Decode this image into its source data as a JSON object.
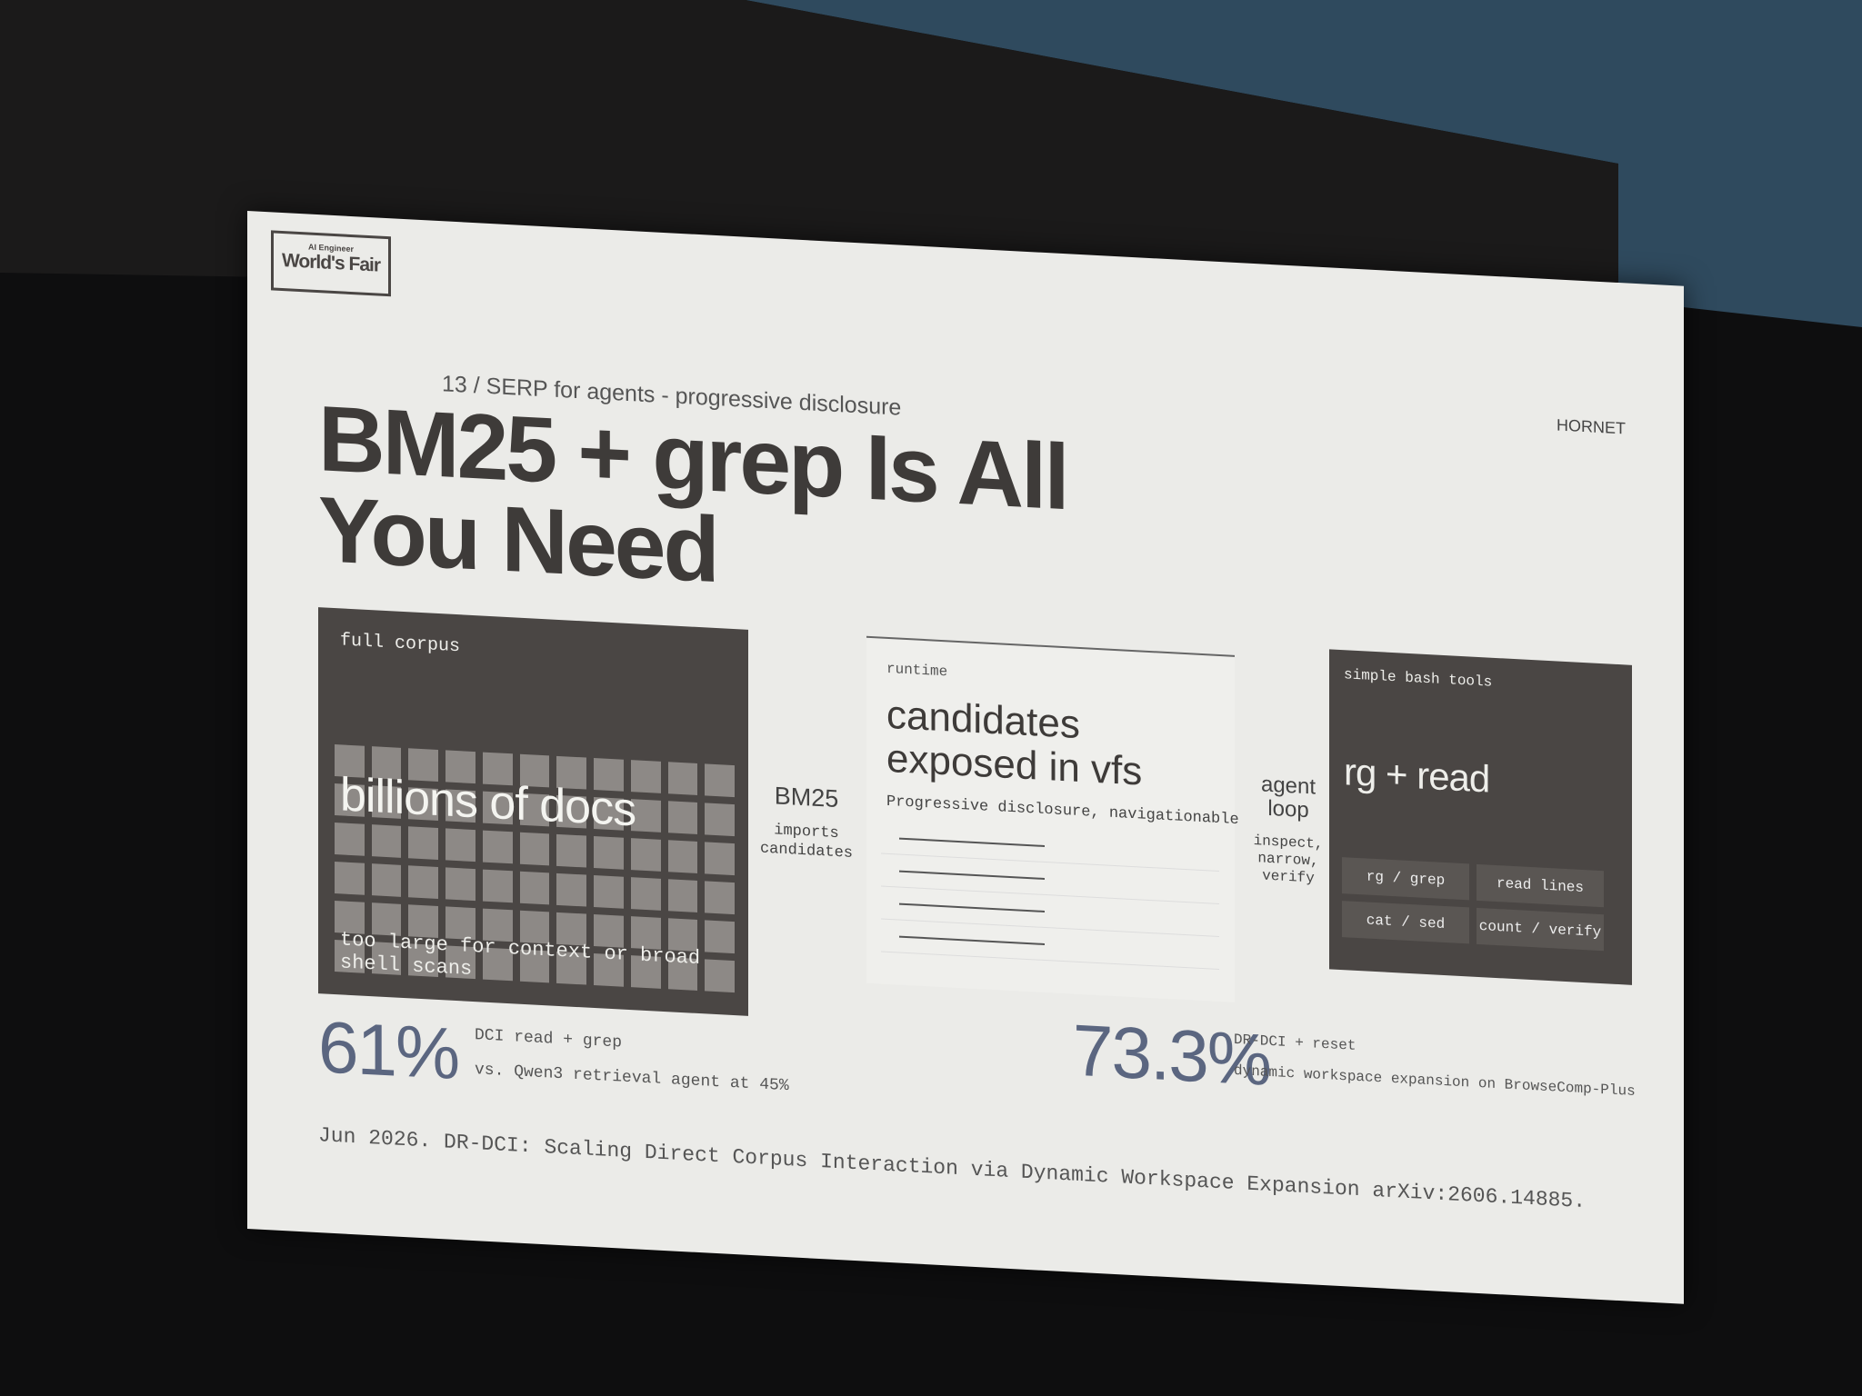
{
  "logo": {
    "small": "AI Engineer",
    "big": "World's Fair"
  },
  "header": {
    "section": "13 / SERP for agents - progressive disclosure",
    "title": "BM25 + grep Is All You Need",
    "brand": "HORNET"
  },
  "panels": [
    {
      "label": "full corpus",
      "headline": "billions of docs",
      "note": "too large for context or broad shell scans"
    },
    {
      "label": "runtime",
      "headline": "candidates exposed in vfs",
      "note": "Progressive disclosure, navigationable"
    },
    {
      "label": "simple bash tools",
      "headline": "rg + read",
      "tools": [
        "rg / grep",
        "read lines",
        "cat / sed",
        "count / verify"
      ]
    }
  ],
  "connectors": [
    {
      "label": "BM25",
      "note": "imports candidates"
    },
    {
      "label": "agent loop",
      "note": "inspect, narrow, verify"
    }
  ],
  "stats": [
    {
      "value": "61%",
      "label": "DCI read + grep",
      "note": "vs. Qwen3 retrieval agent at 45%"
    },
    {
      "value": "73.3%",
      "label": "DR-DCI + reset",
      "note": "dynamic workspace expansion on BrowseComp-Plus"
    }
  ],
  "citation": "Jun 2026. DR-DCI: Scaling Direct Corpus Interaction via Dynamic Workspace Expansion arXiv:2606.14885."
}
